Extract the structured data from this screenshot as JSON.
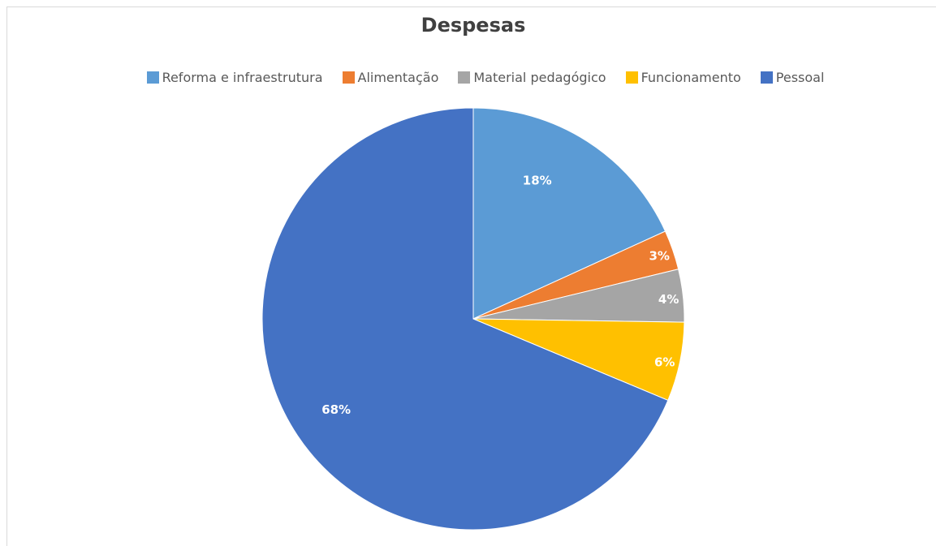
{
  "chart_data": {
    "type": "pie",
    "title": "Despesas",
    "legend_position": "top",
    "slices": [
      {
        "label": "Reforma e infraestrutura",
        "value": 18,
        "data_label": "18%",
        "color": "#5b9bd5"
      },
      {
        "label": "Alimentação",
        "value": 3,
        "data_label": "3%",
        "color": "#ed7d31"
      },
      {
        "label": "Material pedagógico",
        "value": 4,
        "data_label": "4%",
        "color": "#a5a5a5"
      },
      {
        "label": "Funcionamento",
        "value": 6,
        "data_label": "6%",
        "color": "#ffc000"
      },
      {
        "label": "Pessoal",
        "value": 68,
        "data_label": "68%",
        "color": "#4472c4"
      }
    ]
  }
}
